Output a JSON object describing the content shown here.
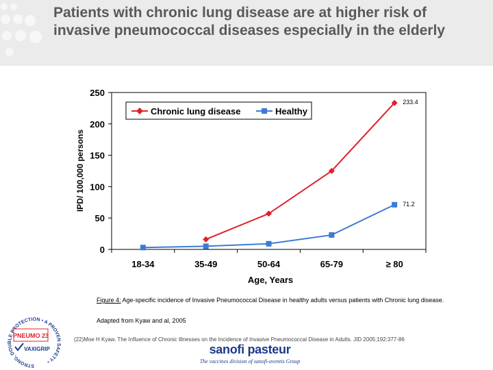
{
  "slide": {
    "title": "Patients with chronic lung disease are at higher risk of invasive pneumococcal diseases especially in the elderly"
  },
  "chart_data": {
    "type": "line",
    "categories": [
      "18-34",
      "35-49",
      "50-64",
      "65-79",
      "≥ 80"
    ],
    "series": [
      {
        "name": "Chronic lung disease",
        "color": "#e0202a",
        "marker": "diamond",
        "values": [
          null,
          16,
          57,
          125,
          233.4
        ]
      },
      {
        "name": "Healthy",
        "color": "#3a7bd5",
        "marker": "square",
        "values": [
          3,
          5,
          9,
          23,
          71.2
        ]
      }
    ],
    "data_labels": [
      "233.4",
      "71.2"
    ],
    "xlabel": "Age, Years",
    "ylabel": "IPD/ 100,000 persons",
    "ylim": [
      0,
      250
    ],
    "yticks": [
      "0",
      "50",
      "100",
      "150",
      "200",
      "250"
    ],
    "legend": "top"
  },
  "caption": {
    "figure_no": "Figure 4:",
    "text": " Age-specific incidence of Invasive Pneumococcal Disease in healthy adults versus patients with Chronic lung disease.",
    "adapted": "Adapted from Kyaw and al, 2005",
    "reference": "(22)Moe H Kyaw. The Influence of Chronic Illnesses on the Incidence of Invasive Pneumococcal Disease in Adults. JID 2005;192:377-86"
  },
  "logos": {
    "pneumo_ring": "STRONG, DOUBLE PROTECTION • A PROVEN SAFETY •",
    "pneumo": "PNEUMO 23",
    "vaxigrip": "VAXIGRIP",
    "sanofi_name": "sanofi pasteur",
    "sanofi_tagline": "The vaccines division of sanofi-aventis Group"
  }
}
